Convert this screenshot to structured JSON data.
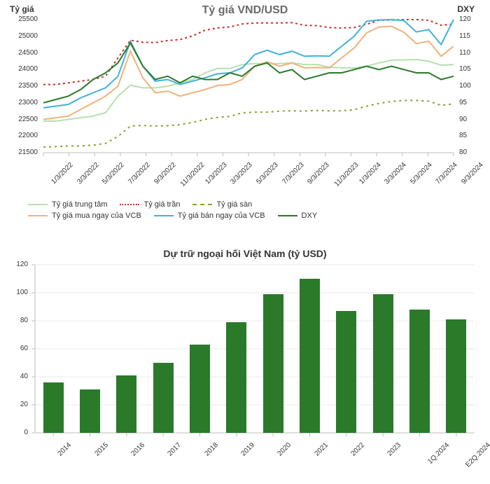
{
  "line_chart": {
    "type": "line",
    "title": "Tỷ giá VND/USD",
    "title_fontsize": 16,
    "title_color": "#6a6a6a",
    "axis_left": {
      "label": "Tỷ giá",
      "min": 21500,
      "max": 25500,
      "step": 500,
      "label_fontsize": 12,
      "tick_fontsize": 10,
      "color": "#333"
    },
    "axis_right": {
      "label": "DXY",
      "min": 80,
      "max": 120,
      "step": 5,
      "label_fontsize": 12,
      "tick_fontsize": 10,
      "color": "#333"
    },
    "x_labels": [
      "1/3/2022",
      "3/3/2022",
      "5/3/2022",
      "7/3/2022",
      "9/3/2022",
      "11/3/2022",
      "1/3/2023",
      "3/3/2023",
      "5/3/2023",
      "7/3/2023",
      "9/3/2023",
      "11/3/2023",
      "1/3/2024",
      "3/3/2024",
      "5/3/2024",
      "7/3/2024",
      "9/3/2024"
    ],
    "x_label_fontsize": 10,
    "x_label_rotation": -45,
    "background_color": "#ffffff",
    "grid_color": "#e9e9e9",
    "tick_mark_color": "#bdbdbd",
    "series": [
      {
        "name": "Tỷ giá trung tâm",
        "axis": "left",
        "color": "#b7e0b0",
        "width": 2,
        "dash": "",
        "y": [
          22450,
          22450,
          22500,
          22550,
          22600,
          22700,
          23200,
          23530,
          23450,
          23450,
          23500,
          23600,
          23700,
          23900,
          24030,
          24030,
          24150,
          24180,
          24180,
          24180,
          24200,
          24150,
          24150,
          24070,
          24050,
          24045,
          24100,
          24200,
          24280,
          24290,
          24300,
          24250,
          24130,
          24150
        ]
      },
      {
        "name": "Tỷ giá trần",
        "axis": "left",
        "color": "#c9302c",
        "width": 2,
        "dash": "3 4",
        "y": [
          23550,
          23550,
          23600,
          23650,
          23700,
          23800,
          24350,
          24880,
          24820,
          24810,
          24870,
          24900,
          25010,
          25180,
          25250,
          25280,
          25370,
          25400,
          25400,
          25400,
          25410,
          25330,
          25320,
          25260,
          25250,
          25260,
          25360,
          25480,
          25490,
          25500,
          25500,
          25480,
          25330,
          25370
        ]
      },
      {
        "name": "Tỷ giá sàn",
        "axis": "left",
        "color": "#8aa22f",
        "width": 2,
        "dash": "3 5",
        "y": [
          21670,
          21680,
          21700,
          21700,
          21730,
          21780,
          21990,
          22300,
          22320,
          22300,
          22310,
          22340,
          22410,
          22500,
          22560,
          22590,
          22700,
          22720,
          22720,
          22750,
          22760,
          22750,
          22770,
          22760,
          22760,
          22790,
          22900,
          22980,
          23040,
          23070,
          23070,
          23050,
          22920,
          22970
        ]
      },
      {
        "name": "Tỷ giá mua ngay của VCB",
        "axis": "left",
        "color": "#f2b27a",
        "width": 2,
        "dash": "",
        "y": [
          22500,
          22550,
          22600,
          22800,
          23000,
          23200,
          23500,
          24550,
          23750,
          23300,
          23350,
          23200,
          23300,
          23400,
          23520,
          23550,
          23700,
          24100,
          24230,
          24100,
          24200,
          24050,
          24060,
          24050,
          24350,
          24650,
          25100,
          25280,
          25300,
          25120,
          24780,
          24850,
          24400,
          24700
        ]
      },
      {
        "name": "Tỷ giá bán ngay của VCB",
        "axis": "left",
        "color": "#3fb3d9",
        "width": 2,
        "dash": "",
        "y": [
          22850,
          22900,
          22950,
          23150,
          23300,
          23450,
          23800,
          24850,
          24100,
          23650,
          23700,
          23550,
          23650,
          23750,
          23870,
          23900,
          24050,
          24450,
          24580,
          24450,
          24550,
          24400,
          24410,
          24400,
          24700,
          25000,
          25450,
          25490,
          25500,
          25470,
          25130,
          25200,
          24750,
          25500
        ]
      },
      {
        "name": "DXY",
        "axis": "right",
        "color": "#2a7a2a",
        "width": 2,
        "dash": "",
        "y": [
          95,
          96,
          97,
          99,
          102,
          104,
          107,
          113,
          106,
          102,
          103,
          101,
          103,
          102,
          102,
          104,
          103,
          106,
          107,
          104,
          105,
          102,
          103,
          104,
          104,
          105,
          106,
          105,
          106,
          105,
          104,
          104,
          102,
          103
        ]
      }
    ],
    "legend": {
      "rows": [
        [
          {
            "label": "Tỷ giá trung tâm",
            "color": "#b7e0b0",
            "dash": ""
          },
          {
            "label": "Tỷ giá trần",
            "color": "#c9302c",
            "dash": "dotted"
          },
          {
            "label": "Tỷ giá sàn",
            "color": "#8aa22f",
            "dash": "dashed"
          }
        ],
        [
          {
            "label": "Tỷ giá mua ngay của VCB",
            "color": "#f2b27a",
            "dash": ""
          },
          {
            "label": "Tỷ giá bán ngay của VCB",
            "color": "#3fb3d9",
            "dash": ""
          },
          {
            "label": "DXY",
            "color": "#2a7a2a",
            "dash": ""
          }
        ]
      ],
      "fontsize": 11
    }
  },
  "bar_chart": {
    "type": "bar",
    "title": "Dự trữ ngoại hối Việt Nam (tỷ USD)",
    "title_fontsize": 14,
    "title_color": "#333333",
    "categories": [
      "2014",
      "2015",
      "2016",
      "2017",
      "2018",
      "2019",
      "2020",
      "2021",
      "2022",
      "2023",
      "1Q.2024",
      "E2Q.2024"
    ],
    "values": [
      36,
      31,
      41,
      50,
      63,
      79,
      99,
      110,
      87,
      99,
      88,
      81
    ],
    "bar_color": "#2a7a2a",
    "bar_width": 0.55,
    "y": {
      "min": 0,
      "max": 120,
      "step": 20,
      "tick_fontsize": 10
    },
    "x_label_rotation": -45,
    "x_label_fontsize": 10,
    "background_color": "#ffffff",
    "grid_color": "#e9e9e9",
    "axis_color": "#bdbdbd"
  }
}
